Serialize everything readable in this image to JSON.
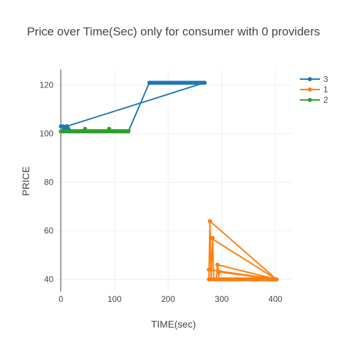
{
  "chart_data": {
    "type": "line",
    "title": "Price over Time(Sec) only for consumer with 0 providers",
    "xlabel": "TIME(sec)",
    "ylabel": "PRICE",
    "xlim": [
      -10,
      430
    ],
    "ylim": [
      35,
      126.5
    ],
    "xticks": [
      0,
      100,
      200,
      300,
      400
    ],
    "yticks": [
      40,
      60,
      80,
      100,
      120
    ],
    "grid": true,
    "legend_position": "top-right",
    "series": [
      {
        "name": "3",
        "color": "#1f77b4",
        "x": [
          0,
          2,
          4,
          6,
          8,
          10,
          12,
          14,
          16,
          18,
          20,
          24,
          28,
          32,
          36,
          40,
          44,
          48,
          52,
          56,
          60,
          64,
          68,
          72,
          76,
          80,
          84,
          88,
          92,
          96,
          100,
          104,
          108,
          112,
          116,
          120,
          124,
          126,
          165,
          168,
          172,
          176,
          180,
          184,
          188,
          192,
          196,
          200,
          204,
          208,
          212,
          216,
          220,
          224,
          228,
          232,
          236,
          240,
          244,
          248,
          252,
          256,
          260,
          264,
          268,
          10
        ],
        "y": [
          103,
          103,
          103,
          102,
          102,
          102,
          103,
          102,
          101,
          101,
          101,
          101,
          101,
          101,
          101,
          101,
          101,
          101,
          101,
          101,
          101,
          101,
          101,
          101,
          101,
          101,
          101,
          101,
          101,
          101,
          101,
          101,
          101,
          101,
          101,
          101,
          101,
          101,
          121,
          121,
          121,
          121,
          121,
          121,
          121,
          121,
          121,
          121,
          121,
          121,
          121,
          121,
          121,
          121,
          121,
          121,
          121,
          121,
          121,
          121,
          121,
          121,
          121,
          121,
          121,
          103
        ]
      },
      {
        "name": "1",
        "color": "#ff7f0e",
        "x": [
          276,
          278,
          280,
          283,
          285,
          288,
          290,
          292,
          295,
          298,
          301,
          304,
          307,
          310,
          313,
          316,
          319,
          322,
          325,
          328,
          331,
          334,
          337,
          340,
          343,
          346,
          349,
          352,
          355,
          358,
          361,
          364,
          367,
          370,
          373,
          376,
          379,
          382,
          385,
          388,
          391,
          394,
          397,
          400,
          276,
          402,
          295,
          402,
          292,
          402,
          280,
          402,
          278
        ],
        "y": [
          40,
          64,
          40,
          57,
          40,
          40,
          40,
          46,
          40,
          40,
          40,
          40,
          40,
          40,
          40,
          40,
          40,
          40,
          40,
          40,
          40,
          40,
          40,
          40,
          40,
          40,
          40,
          40,
          40,
          40,
          40,
          40,
          40,
          40,
          40,
          40,
          40,
          40,
          40,
          40,
          40,
          40,
          40,
          40,
          44,
          40,
          43,
          40,
          46,
          40,
          57,
          40,
          64
        ]
      },
      {
        "name": "2",
        "color": "#2ca02c",
        "x": [
          0,
          3,
          6,
          9,
          12,
          15,
          18,
          21,
          24,
          27,
          30,
          33,
          36,
          39,
          42,
          45,
          48,
          51,
          54,
          57,
          60,
          63,
          66,
          69,
          72,
          75,
          78,
          81,
          84,
          87,
          90,
          93,
          96,
          99,
          102,
          105,
          108,
          111,
          114,
          117,
          120,
          123,
          126
        ],
        "y": [
          101,
          101,
          101,
          101,
          101,
          101,
          101,
          101,
          101,
          101,
          101,
          101,
          101,
          101,
          101,
          102,
          101,
          101,
          101,
          101,
          101,
          101,
          101,
          101,
          101,
          101,
          101,
          101,
          101,
          101,
          102,
          101,
          101,
          101,
          101,
          101,
          101,
          101,
          101,
          101,
          101,
          101,
          101
        ]
      }
    ]
  }
}
